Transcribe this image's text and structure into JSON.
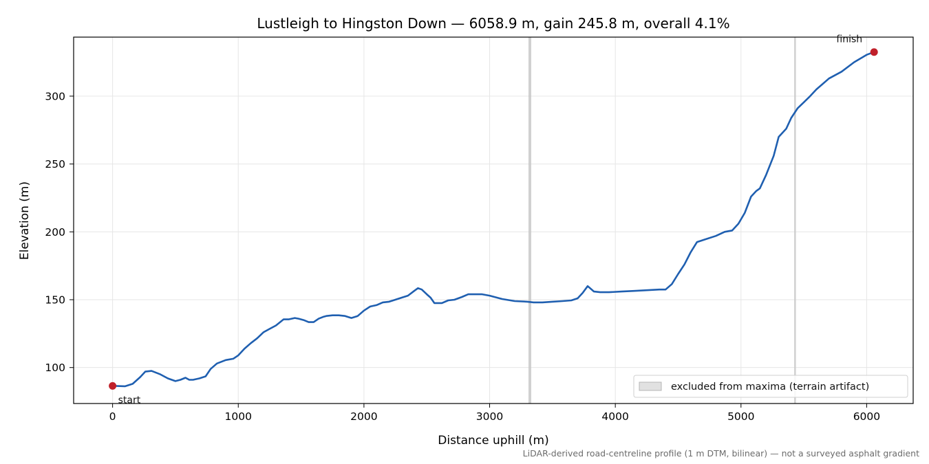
{
  "chart_data": {
    "type": "line",
    "title": "Lustleigh to Hingston Down — 6058.9 m, gain 245.8 m, overall 4.1%",
    "xlabel": "Distance uphill (m)",
    "ylabel": "Elevation (m)",
    "xlim": [
      -310,
      6370
    ],
    "ylim": [
      73.5,
      343.5
    ],
    "xticks": [
      0,
      1000,
      2000,
      3000,
      4000,
      5000,
      6000
    ],
    "yticks": [
      100,
      150,
      200,
      250,
      300
    ],
    "grid": true,
    "colors": {
      "line": "#1f5fb0",
      "marker": "#c0202a",
      "band": "#c8c8c8",
      "grid": "#e6e6e6",
      "footnote": "#6b6b6b"
    },
    "series": [
      {
        "x": [
          0,
          100,
          160,
          220,
          260,
          310,
          380,
          440,
          500,
          540,
          580,
          610,
          640,
          690,
          740,
          780,
          830,
          900,
          960,
          1000,
          1050,
          1100,
          1150,
          1200,
          1250,
          1300,
          1360,
          1400,
          1450,
          1480,
          1520,
          1560,
          1600,
          1640,
          1680,
          1700,
          1750,
          1800,
          1850,
          1900,
          1950,
          2000,
          2050,
          2100,
          2150,
          2200,
          2250,
          2300,
          2350,
          2400,
          2430,
          2460,
          2500,
          2530,
          2560,
          2620,
          2670,
          2720,
          2780,
          2830,
          2880,
          2940,
          3000,
          3100,
          3200,
          3300,
          3350,
          3420,
          3500,
          3580,
          3650,
          3700,
          3740,
          3780,
          3830,
          3880,
          3950,
          4050,
          4150,
          4250,
          4350,
          4400,
          4450,
          4500,
          4550,
          4600,
          4650,
          4700,
          4800,
          4870,
          4930,
          4980,
          5030,
          5080,
          5120,
          5150,
          5200,
          5260,
          5300,
          5360,
          5400,
          5450,
          5500,
          5550,
          5600,
          5650,
          5700,
          5800,
          5900,
          6000,
          6058.9
        ],
        "y": [
          86.5,
          86.2,
          88,
          93,
          97,
          97.5,
          95,
          92,
          90,
          91,
          92.5,
          91,
          91,
          92,
          93.5,
          99,
          103,
          105.5,
          106.5,
          109,
          114,
          118,
          121.5,
          126,
          128.5,
          131,
          135.5,
          135.5,
          136.5,
          136,
          135,
          133.5,
          133.5,
          136,
          137.5,
          138,
          138.5,
          138.5,
          138,
          136.5,
          138,
          142,
          145,
          146,
          148,
          148.5,
          150,
          151.5,
          153,
          156.5,
          158.5,
          157.5,
          154,
          151.5,
          147.5,
          147.5,
          149.5,
          150,
          152,
          154,
          154,
          154,
          153,
          150.5,
          149,
          148.5,
          148,
          148,
          148.5,
          149,
          149.5,
          151,
          155,
          160,
          156,
          155.5,
          155.5,
          156,
          156.5,
          157,
          157.5,
          157.5,
          161.5,
          169,
          176,
          185,
          192.5,
          194,
          197,
          200,
          201,
          206,
          214,
          226,
          230,
          232,
          242,
          256,
          270,
          276,
          284,
          291,
          295.5,
          300,
          305,
          309,
          313,
          318,
          325,
          330.5,
          332.5
        ]
      }
    ],
    "markers": [
      {
        "x": 0,
        "y": 86.5,
        "label": "start"
      },
      {
        "x": 6058.9,
        "y": 332.5,
        "label": "finish"
      }
    ],
    "excluded_bands": [
      {
        "x": 3320
      },
      {
        "x": 5430
      }
    ],
    "legend": {
      "position": "lower-right",
      "entries": [
        "excluded from maxima (terrain artifact)"
      ]
    },
    "footnote": "LiDAR-derived road-centreline profile (1 m DTM, bilinear) — not a surveyed asphalt gradient"
  }
}
